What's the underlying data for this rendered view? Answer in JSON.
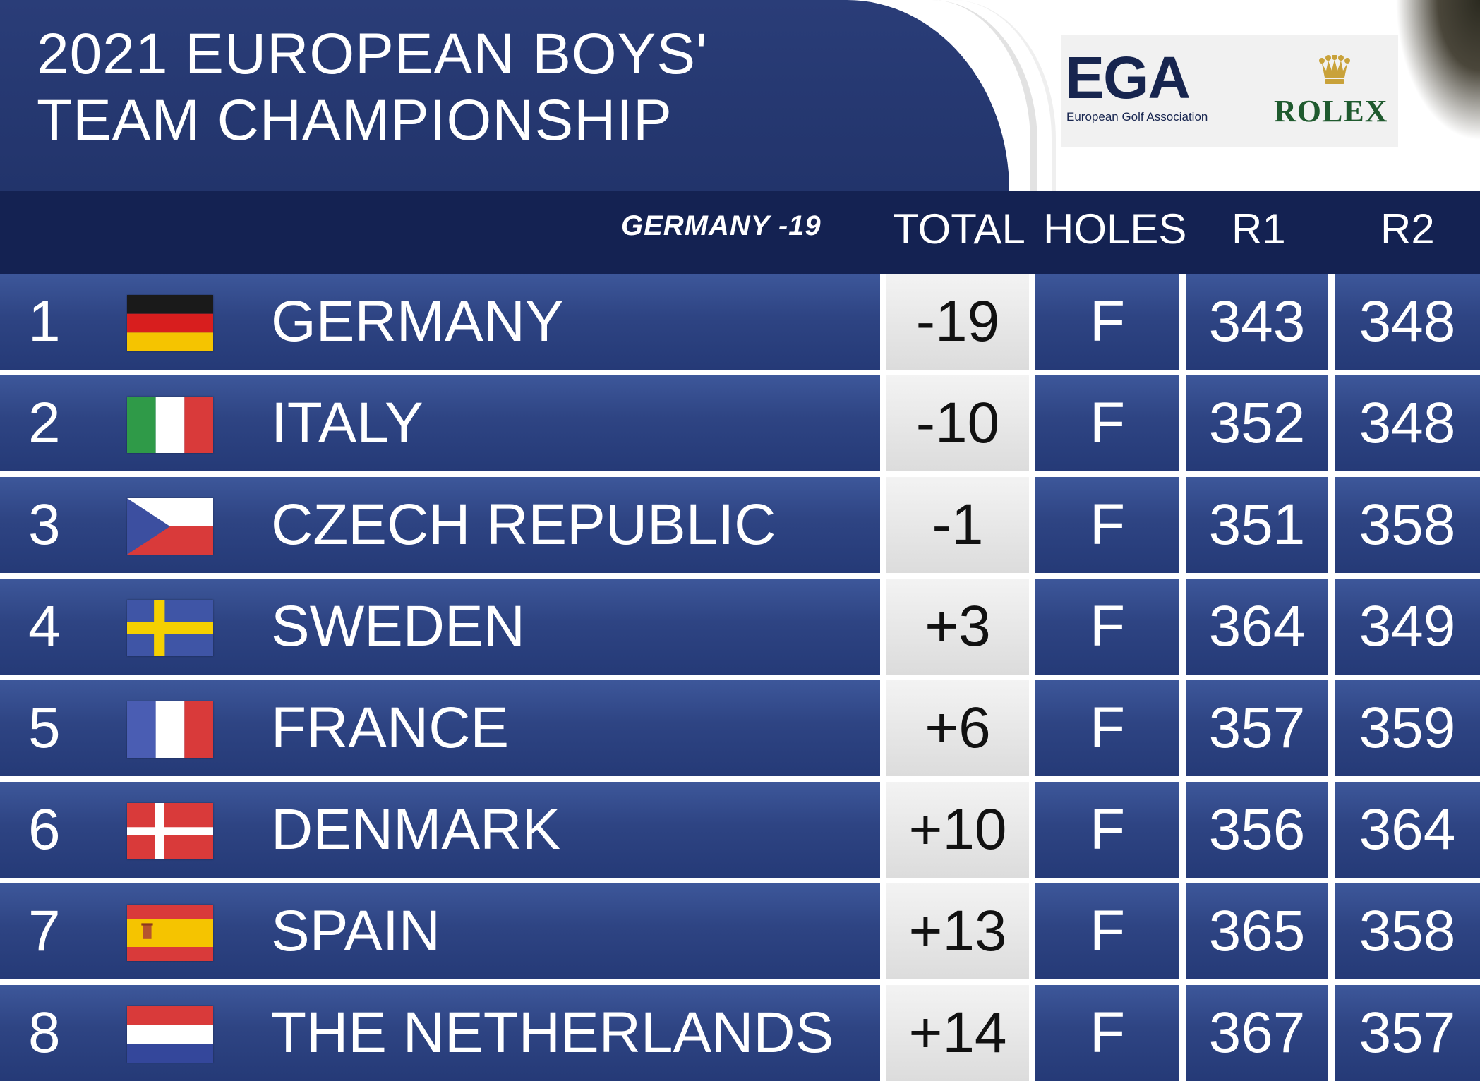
{
  "header": {
    "title_line1": "2021 EUROPEAN BOYS'",
    "title_line2": "TEAM CHAMPIONSHIP",
    "logo_ega": "EGA",
    "logo_ega_sub": "European Golf Association",
    "logo_rolex": "ROLEX"
  },
  "columns": {
    "leader": "GERMANY -19",
    "total": "TOTAL",
    "holes": "HOLES",
    "r1": "R1",
    "r2": "R2"
  },
  "rows": [
    {
      "pos": "1",
      "team": "GERMANY",
      "flag": "germany",
      "total": "-19",
      "holes": "F",
      "r1": "343",
      "r2": "348"
    },
    {
      "pos": "2",
      "team": "ITALY",
      "flag": "italy",
      "total": "-10",
      "holes": "F",
      "r1": "352",
      "r2": "348"
    },
    {
      "pos": "3",
      "team": "CZECH REPUBLIC",
      "flag": "czech-republic",
      "total": "-1",
      "holes": "F",
      "r1": "351",
      "r2": "358"
    },
    {
      "pos": "4",
      "team": "SWEDEN",
      "flag": "sweden",
      "total": "+3",
      "holes": "F",
      "r1": "364",
      "r2": "349"
    },
    {
      "pos": "5",
      "team": "FRANCE",
      "flag": "france",
      "total": "+6",
      "holes": "F",
      "r1": "357",
      "r2": "359"
    },
    {
      "pos": "6",
      "team": "DENMARK",
      "flag": "denmark",
      "total": "+10",
      "holes": "F",
      "r1": "356",
      "r2": "364"
    },
    {
      "pos": "7",
      "team": "SPAIN",
      "flag": "spain",
      "total": "+13",
      "holes": "F",
      "r1": "365",
      "r2": "358"
    },
    {
      "pos": "8",
      "team": "THE NETHERLANDS",
      "flag": "netherlands",
      "total": "+14",
      "holes": "F",
      "r1": "367",
      "r2": "357"
    }
  ],
  "colors": {
    "row_blue": "#2e4483",
    "header_navy": "#142252",
    "total_cell": "#e6e6e6"
  }
}
